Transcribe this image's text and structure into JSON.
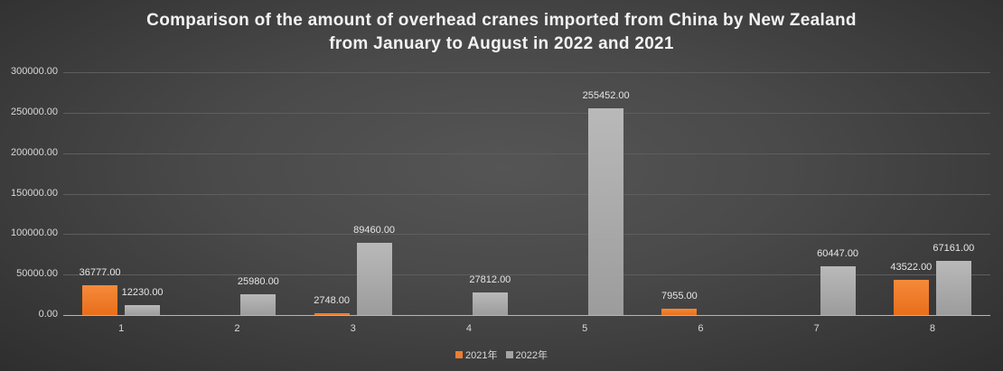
{
  "title": {
    "line1": "Comparison of the amount of overhead cranes imported from China by New Zealand",
    "line2": "from January to August in 2022 and 2021"
  },
  "y_axis": {
    "ticks": [
      "0.00",
      "50000.00",
      "100000.00",
      "150000.00",
      "200000.00",
      "250000.00",
      "300000.00"
    ]
  },
  "x_axis": {
    "ticks": [
      "1",
      "2",
      "3",
      "4",
      "5",
      "6",
      "7",
      "8"
    ]
  },
  "legend": [
    {
      "label": "2021年",
      "color": "#ed7d31"
    },
    {
      "label": "2022年",
      "color": "#a5a5a5"
    }
  ],
  "chart_data": {
    "type": "bar",
    "title": "Comparison of the amount of overhead cranes imported from China by New Zealand from January to August in 2022 and 2021",
    "xlabel": "",
    "ylabel": "",
    "categories": [
      "1",
      "2",
      "3",
      "4",
      "5",
      "6",
      "7",
      "8"
    ],
    "series": [
      {
        "name": "2021年",
        "color": "#ed7d31",
        "values": [
          36777.0,
          null,
          2748.0,
          null,
          null,
          7955.0,
          null,
          43522.0
        ],
        "labels": [
          "36777.00",
          "",
          "2748.00",
          "",
          "",
          "7955.00",
          "",
          "43522.00"
        ]
      },
      {
        "name": "2022年",
        "color": "#a5a5a5",
        "values": [
          12230.0,
          25980.0,
          89460.0,
          27812.0,
          255452.0,
          null,
          60447.0,
          67161.0
        ],
        "labels": [
          "12230.00",
          "25980.00",
          "89460.00",
          "27812.00",
          "255452.00",
          "",
          "60447.00",
          "67161.00"
        ]
      }
    ],
    "ylim": [
      0,
      300000
    ],
    "yticks": [
      0,
      50000,
      100000,
      150000,
      200000,
      250000,
      300000
    ],
    "grid": true,
    "legend_position": "bottom"
  }
}
